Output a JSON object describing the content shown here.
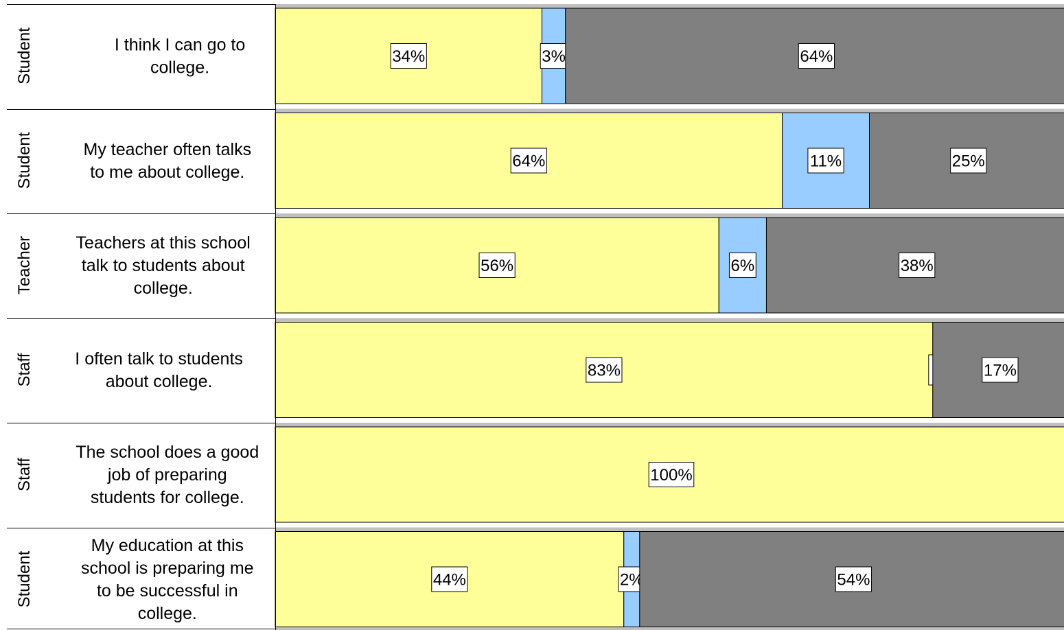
{
  "chart_data": {
    "type": "bar",
    "orientation": "horizontal",
    "stacked": true,
    "percent_scale": true,
    "xlim": [
      0,
      100
    ],
    "grid": false,
    "legend": "none",
    "rows": [
      {
        "group": "Student",
        "label": "I think I can go to college.",
        "values": [
          34,
          3,
          64
        ],
        "labels": [
          "34%",
          "3%",
          "64%"
        ]
      },
      {
        "group": "Student",
        "label": "My teacher often talks to me about college.",
        "values": [
          64,
          11,
          25
        ],
        "labels": [
          "64%",
          "11%",
          "25%"
        ]
      },
      {
        "group": "Teacher",
        "label": "Teachers at this school talk to students about college.",
        "values": [
          56,
          6,
          38
        ],
        "labels": [
          "56%",
          "6%",
          "38%"
        ]
      },
      {
        "group": "Staff",
        "label": "I often talk to students about college.",
        "values": [
          83,
          0,
          17
        ],
        "labels": [
          "83%",
          "",
          "17%"
        ]
      },
      {
        "group": "Staff",
        "label": "The school does a good job of preparing students for college.",
        "values": [
          100,
          0,
          0
        ],
        "labels": [
          "100%",
          "",
          ""
        ]
      },
      {
        "group": "Student",
        "label": "My education at this school is preparing me to be successful in college.",
        "values": [
          44,
          2,
          54
        ],
        "labels": [
          "44%",
          "2%",
          "54%"
        ]
      }
    ],
    "colors": {
      "segment_1": "#FFFF99",
      "segment_2": "#99CCFF",
      "segment_3": "#808080",
      "row_gap": "#C0C0C0"
    }
  }
}
